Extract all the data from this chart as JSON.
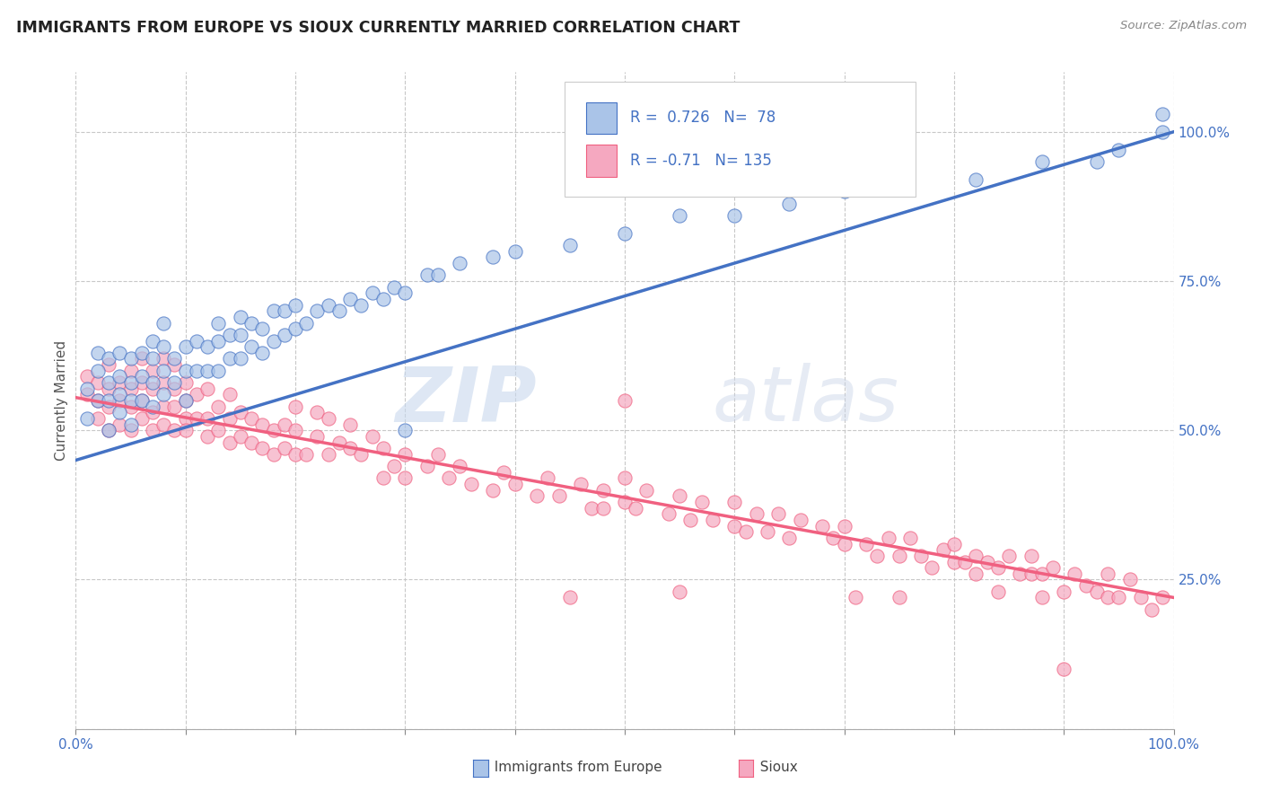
{
  "title": "IMMIGRANTS FROM EUROPE VS SIOUX CURRENTLY MARRIED CORRELATION CHART",
  "source": "Source: ZipAtlas.com",
  "ylabel": "Currently Married",
  "xlim": [
    0.0,
    1.0
  ],
  "ylim": [
    0.0,
    1.1
  ],
  "blue_R": 0.726,
  "blue_N": 78,
  "pink_R": -0.71,
  "pink_N": 135,
  "legend_label_blue": "Immigrants from Europe",
  "legend_label_pink": "Sioux",
  "watermark_zip": "ZIP",
  "watermark_atlas": "atlas",
  "blue_color": "#aac4e8",
  "pink_color": "#f5a8c0",
  "blue_line_color": "#4472c4",
  "pink_line_color": "#f06080",
  "blue_line_intercept": 0.45,
  "blue_line_slope": 0.55,
  "pink_line_intercept": 0.555,
  "pink_line_slope": -0.335,
  "blue_scatter": [
    [
      0.01,
      0.52
    ],
    [
      0.01,
      0.57
    ],
    [
      0.02,
      0.55
    ],
    [
      0.02,
      0.6
    ],
    [
      0.02,
      0.63
    ],
    [
      0.03,
      0.5
    ],
    [
      0.03,
      0.55
    ],
    [
      0.03,
      0.58
    ],
    [
      0.03,
      0.62
    ],
    [
      0.04,
      0.53
    ],
    [
      0.04,
      0.56
    ],
    [
      0.04,
      0.59
    ],
    [
      0.04,
      0.63
    ],
    [
      0.05,
      0.51
    ],
    [
      0.05,
      0.55
    ],
    [
      0.05,
      0.58
    ],
    [
      0.05,
      0.62
    ],
    [
      0.06,
      0.55
    ],
    [
      0.06,
      0.59
    ],
    [
      0.06,
      0.63
    ],
    [
      0.07,
      0.54
    ],
    [
      0.07,
      0.58
    ],
    [
      0.07,
      0.62
    ],
    [
      0.07,
      0.65
    ],
    [
      0.08,
      0.56
    ],
    [
      0.08,
      0.6
    ],
    [
      0.08,
      0.64
    ],
    [
      0.08,
      0.68
    ],
    [
      0.09,
      0.58
    ],
    [
      0.09,
      0.62
    ],
    [
      0.1,
      0.55
    ],
    [
      0.1,
      0.6
    ],
    [
      0.1,
      0.64
    ],
    [
      0.11,
      0.6
    ],
    [
      0.11,
      0.65
    ],
    [
      0.12,
      0.6
    ],
    [
      0.12,
      0.64
    ],
    [
      0.13,
      0.6
    ],
    [
      0.13,
      0.65
    ],
    [
      0.13,
      0.68
    ],
    [
      0.14,
      0.62
    ],
    [
      0.14,
      0.66
    ],
    [
      0.15,
      0.62
    ],
    [
      0.15,
      0.66
    ],
    [
      0.15,
      0.69
    ],
    [
      0.16,
      0.64
    ],
    [
      0.16,
      0.68
    ],
    [
      0.17,
      0.63
    ],
    [
      0.17,
      0.67
    ],
    [
      0.18,
      0.65
    ],
    [
      0.18,
      0.7
    ],
    [
      0.19,
      0.66
    ],
    [
      0.19,
      0.7
    ],
    [
      0.2,
      0.67
    ],
    [
      0.2,
      0.71
    ],
    [
      0.21,
      0.68
    ],
    [
      0.22,
      0.7
    ],
    [
      0.23,
      0.71
    ],
    [
      0.24,
      0.7
    ],
    [
      0.25,
      0.72
    ],
    [
      0.26,
      0.71
    ],
    [
      0.27,
      0.73
    ],
    [
      0.28,
      0.72
    ],
    [
      0.29,
      0.74
    ],
    [
      0.3,
      0.73
    ],
    [
      0.3,
      0.5
    ],
    [
      0.32,
      0.76
    ],
    [
      0.33,
      0.76
    ],
    [
      0.35,
      0.78
    ],
    [
      0.38,
      0.79
    ],
    [
      0.4,
      0.8
    ],
    [
      0.45,
      0.81
    ],
    [
      0.5,
      0.83
    ],
    [
      0.55,
      0.86
    ],
    [
      0.6,
      0.86
    ],
    [
      0.65,
      0.88
    ],
    [
      0.7,
      0.9
    ],
    [
      0.82,
      0.92
    ],
    [
      0.88,
      0.95
    ],
    [
      0.93,
      0.95
    ],
    [
      0.95,
      0.97
    ],
    [
      0.99,
      1.0
    ],
    [
      0.99,
      1.03
    ]
  ],
  "pink_scatter": [
    [
      0.01,
      0.56
    ],
    [
      0.01,
      0.59
    ],
    [
      0.02,
      0.52
    ],
    [
      0.02,
      0.55
    ],
    [
      0.02,
      0.58
    ],
    [
      0.03,
      0.5
    ],
    [
      0.03,
      0.54
    ],
    [
      0.03,
      0.57
    ],
    [
      0.03,
      0.61
    ],
    [
      0.04,
      0.51
    ],
    [
      0.04,
      0.55
    ],
    [
      0.04,
      0.58
    ],
    [
      0.05,
      0.5
    ],
    [
      0.05,
      0.54
    ],
    [
      0.05,
      0.57
    ],
    [
      0.05,
      0.6
    ],
    [
      0.06,
      0.52
    ],
    [
      0.06,
      0.55
    ],
    [
      0.06,
      0.58
    ],
    [
      0.06,
      0.62
    ],
    [
      0.07,
      0.5
    ],
    [
      0.07,
      0.53
    ],
    [
      0.07,
      0.57
    ],
    [
      0.07,
      0.6
    ],
    [
      0.08,
      0.51
    ],
    [
      0.08,
      0.54
    ],
    [
      0.08,
      0.58
    ],
    [
      0.08,
      0.62
    ],
    [
      0.09,
      0.5
    ],
    [
      0.09,
      0.54
    ],
    [
      0.09,
      0.57
    ],
    [
      0.09,
      0.61
    ],
    [
      0.1,
      0.52
    ],
    [
      0.1,
      0.55
    ],
    [
      0.1,
      0.58
    ],
    [
      0.1,
      0.5
    ],
    [
      0.11,
      0.52
    ],
    [
      0.11,
      0.56
    ],
    [
      0.12,
      0.49
    ],
    [
      0.12,
      0.52
    ],
    [
      0.12,
      0.57
    ],
    [
      0.13,
      0.5
    ],
    [
      0.13,
      0.54
    ],
    [
      0.14,
      0.48
    ],
    [
      0.14,
      0.52
    ],
    [
      0.14,
      0.56
    ],
    [
      0.15,
      0.49
    ],
    [
      0.15,
      0.53
    ],
    [
      0.16,
      0.48
    ],
    [
      0.16,
      0.52
    ],
    [
      0.17,
      0.47
    ],
    [
      0.17,
      0.51
    ],
    [
      0.18,
      0.46
    ],
    [
      0.18,
      0.5
    ],
    [
      0.19,
      0.47
    ],
    [
      0.19,
      0.51
    ],
    [
      0.2,
      0.46
    ],
    [
      0.2,
      0.5
    ],
    [
      0.2,
      0.54
    ],
    [
      0.21,
      0.46
    ],
    [
      0.22,
      0.49
    ],
    [
      0.22,
      0.53
    ],
    [
      0.23,
      0.46
    ],
    [
      0.23,
      0.52
    ],
    [
      0.24,
      0.48
    ],
    [
      0.25,
      0.47
    ],
    [
      0.25,
      0.51
    ],
    [
      0.26,
      0.46
    ],
    [
      0.27,
      0.49
    ],
    [
      0.28,
      0.42
    ],
    [
      0.28,
      0.47
    ],
    [
      0.29,
      0.44
    ],
    [
      0.3,
      0.42
    ],
    [
      0.3,
      0.46
    ],
    [
      0.32,
      0.44
    ],
    [
      0.33,
      0.46
    ],
    [
      0.34,
      0.42
    ],
    [
      0.35,
      0.44
    ],
    [
      0.36,
      0.41
    ],
    [
      0.38,
      0.4
    ],
    [
      0.39,
      0.43
    ],
    [
      0.4,
      0.41
    ],
    [
      0.42,
      0.39
    ],
    [
      0.43,
      0.42
    ],
    [
      0.44,
      0.39
    ],
    [
      0.45,
      0.22
    ],
    [
      0.46,
      0.41
    ],
    [
      0.47,
      0.37
    ],
    [
      0.48,
      0.4
    ],
    [
      0.48,
      0.37
    ],
    [
      0.5,
      0.38
    ],
    [
      0.5,
      0.42
    ],
    [
      0.5,
      0.55
    ],
    [
      0.51,
      0.37
    ],
    [
      0.52,
      0.4
    ],
    [
      0.54,
      0.36
    ],
    [
      0.55,
      0.39
    ],
    [
      0.55,
      0.23
    ],
    [
      0.56,
      0.35
    ],
    [
      0.57,
      0.38
    ],
    [
      0.58,
      0.35
    ],
    [
      0.6,
      0.34
    ],
    [
      0.6,
      0.38
    ],
    [
      0.61,
      0.33
    ],
    [
      0.62,
      0.36
    ],
    [
      0.63,
      0.33
    ],
    [
      0.64,
      0.36
    ],
    [
      0.65,
      0.32
    ],
    [
      0.66,
      0.35
    ],
    [
      0.68,
      0.34
    ],
    [
      0.69,
      0.32
    ],
    [
      0.7,
      0.31
    ],
    [
      0.7,
      0.34
    ],
    [
      0.71,
      0.22
    ],
    [
      0.72,
      0.31
    ],
    [
      0.73,
      0.29
    ],
    [
      0.74,
      0.32
    ],
    [
      0.75,
      0.29
    ],
    [
      0.75,
      0.22
    ],
    [
      0.76,
      0.32
    ],
    [
      0.77,
      0.29
    ],
    [
      0.78,
      0.27
    ],
    [
      0.79,
      0.3
    ],
    [
      0.8,
      0.28
    ],
    [
      0.8,
      0.31
    ],
    [
      0.81,
      0.28
    ],
    [
      0.82,
      0.26
    ],
    [
      0.82,
      0.29
    ],
    [
      0.83,
      0.28
    ],
    [
      0.84,
      0.23
    ],
    [
      0.84,
      0.27
    ],
    [
      0.85,
      0.29
    ],
    [
      0.86,
      0.26
    ],
    [
      0.87,
      0.26
    ],
    [
      0.87,
      0.29
    ],
    [
      0.88,
      0.22
    ],
    [
      0.88,
      0.26
    ],
    [
      0.89,
      0.27
    ],
    [
      0.9,
      0.23
    ],
    [
      0.9,
      0.1
    ],
    [
      0.91,
      0.26
    ],
    [
      0.92,
      0.24
    ],
    [
      0.93,
      0.23
    ],
    [
      0.94,
      0.22
    ],
    [
      0.94,
      0.26
    ],
    [
      0.95,
      0.22
    ],
    [
      0.96,
      0.25
    ],
    [
      0.97,
      0.22
    ],
    [
      0.98,
      0.2
    ],
    [
      0.99,
      0.22
    ]
  ]
}
